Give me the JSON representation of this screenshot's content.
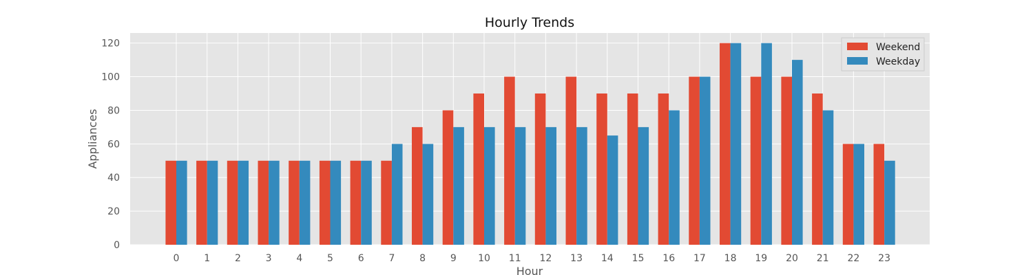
{
  "chart_data": {
    "type": "bar",
    "title": "Hourly Trends",
    "xlabel": "Hour",
    "ylabel": "Appliances",
    "categories": [
      "0",
      "1",
      "2",
      "3",
      "4",
      "5",
      "6",
      "7",
      "8",
      "9",
      "10",
      "11",
      "12",
      "13",
      "14",
      "15",
      "16",
      "17",
      "18",
      "19",
      "20",
      "21",
      "22",
      "23"
    ],
    "series": [
      {
        "name": "Weekend",
        "color": "#E24A33",
        "values": [
          50,
          50,
          50,
          50,
          50,
          50,
          50,
          50,
          70,
          80,
          90,
          100,
          90,
          100,
          90,
          90,
          90,
          100,
          120,
          100,
          100,
          90,
          60,
          60
        ]
      },
      {
        "name": "Weekday",
        "color": "#348ABD",
        "values": [
          50,
          50,
          50,
          50,
          50,
          50,
          50,
          60,
          60,
          70,
          70,
          70,
          70,
          70,
          65,
          70,
          80,
          100,
          120,
          120,
          110,
          80,
          60,
          50
        ]
      }
    ],
    "ylim": [
      0,
      126
    ],
    "yticks": [
      0,
      20,
      40,
      60,
      80,
      100,
      120
    ],
    "grid": true,
    "legend_position": "top-right",
    "background": "#E5E5E5"
  }
}
